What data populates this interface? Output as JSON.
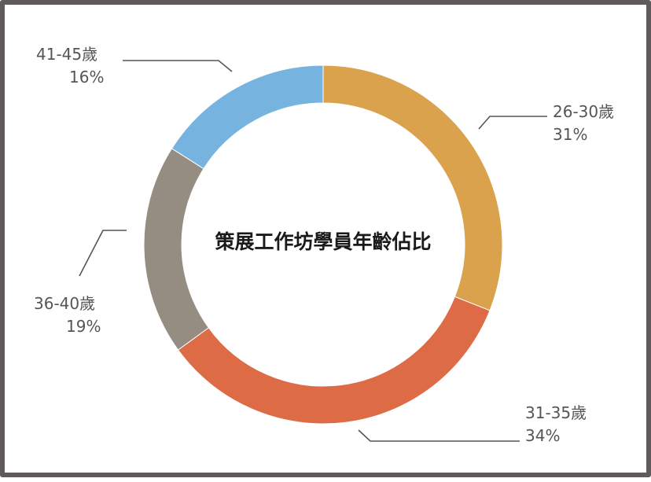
{
  "chart_data": {
    "type": "pie",
    "variant": "donut",
    "title": "策展工作坊學員年齡佔比",
    "slices": [
      {
        "label": "26-30歲",
        "pct_text": "31%",
        "value": 31,
        "color": "#dba24e"
      },
      {
        "label": "31-35歲",
        "pct_text": "34%",
        "value": 34,
        "color": "#dd6b45"
      },
      {
        "label": "36-40歲",
        "pct_text": "19%",
        "value": 19,
        "color": "#958c82"
      },
      {
        "label": "41-45歲",
        "pct_text": "16%",
        "value": 16,
        "color": "#76b3de"
      }
    ],
    "legend": "none",
    "start_angle": "12 o'clock, clockwise"
  }
}
